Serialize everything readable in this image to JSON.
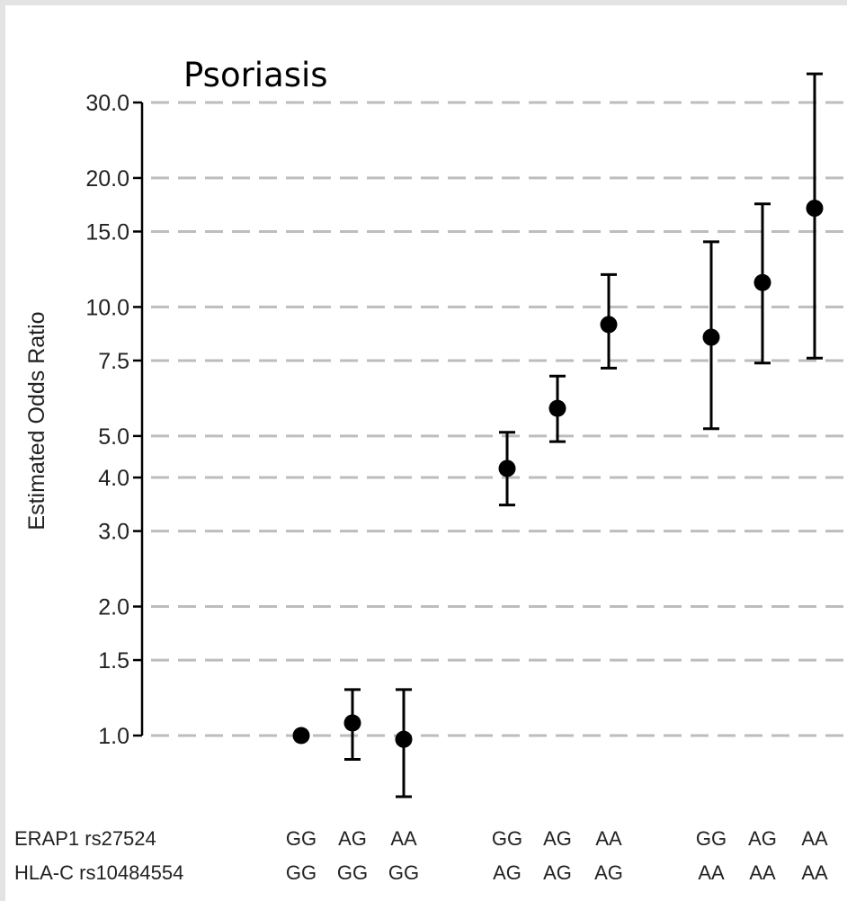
{
  "chart_data": {
    "type": "scatter",
    "title": "Psoriasis",
    "ylabel": "Estimated Odds Ratio",
    "xlabel": "",
    "yscale": "log",
    "ylim": [
      0.9,
      33
    ],
    "grid": true,
    "y_ticks": [
      1.0,
      1.5,
      2.0,
      3.0,
      4.0,
      5.0,
      7.5,
      10.0,
      15.0,
      20.0,
      30.0
    ],
    "y_tick_labels": [
      "1.0",
      "1.5",
      "2.0",
      "3.0",
      "4.0",
      "5.0",
      "7.5",
      "10.0",
      "15.0",
      "20.0",
      "30.0"
    ],
    "row_labels": {
      "erap1": "ERAP1 rs27524",
      "hlac": "HLA-C rs10484554"
    },
    "groups": [
      {
        "hlac": "GG",
        "points": [
          {
            "erap1": "GG",
            "hlac": "GG",
            "or": 1.0,
            "lower": null,
            "upper": null
          },
          {
            "erap1": "AG",
            "hlac": "GG",
            "or": 1.07,
            "lower": 0.88,
            "upper": 1.28
          },
          {
            "erap1": "AA",
            "hlac": "GG",
            "or": 0.98,
            "lower": 0.72,
            "upper": 1.28
          }
        ]
      },
      {
        "hlac": "AG",
        "points": [
          {
            "erap1": "GG",
            "hlac": "AG",
            "or": 4.2,
            "lower": 3.45,
            "upper": 5.1
          },
          {
            "erap1": "AG",
            "hlac": "AG",
            "or": 5.8,
            "lower": 4.85,
            "upper": 6.9
          },
          {
            "erap1": "AA",
            "hlac": "AG",
            "or": 9.1,
            "lower": 7.2,
            "upper": 11.9
          }
        ]
      },
      {
        "hlac": "AA",
        "points": [
          {
            "erap1": "GG",
            "hlac": "AA",
            "or": 8.5,
            "lower": 5.2,
            "upper": 14.2
          },
          {
            "erap1": "AG",
            "hlac": "AA",
            "or": 11.4,
            "lower": 7.4,
            "upper": 17.4
          },
          {
            "erap1": "AA",
            "hlac": "AA",
            "or": 17.0,
            "lower": 7.6,
            "upper": 35.0
          }
        ]
      }
    ]
  }
}
